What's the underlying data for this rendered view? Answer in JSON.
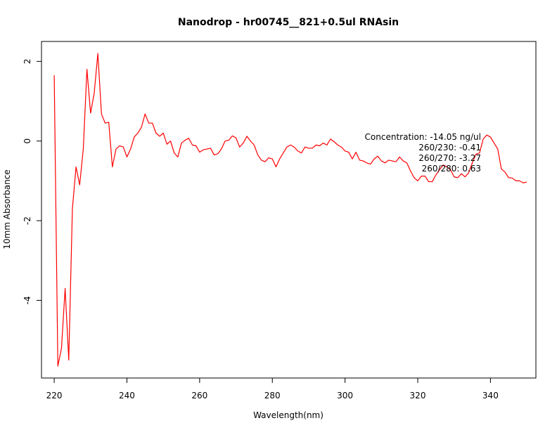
{
  "chart_data": {
    "type": "line",
    "title": "Nanodrop - hr00745__821+0.5ul RNAsin",
    "xlabel": "Wavelength(nm)",
    "ylabel": "10mm Absorbance",
    "xlim": [
      216.5,
      352.5
    ],
    "ylim": [
      -5.95,
      2.5
    ],
    "xticks": [
      220,
      240,
      260,
      280,
      300,
      320,
      340
    ],
    "yticks": [
      2,
      0,
      -2,
      -4
    ],
    "x_tick_labels": [
      "220",
      "240",
      "260",
      "280",
      "300",
      "320",
      "340"
    ],
    "y_tick_labels": [
      "2",
      "0",
      "-2",
      "-4"
    ],
    "grid": false,
    "line_color": "#ff0000",
    "series": [
      {
        "x": [
          220,
          221,
          222,
          223,
          224,
          225,
          226,
          227,
          228,
          229,
          230,
          231,
          232,
          233,
          234,
          235,
          236,
          237,
          238,
          239,
          240,
          241,
          242,
          243,
          244,
          245,
          246,
          247,
          248,
          249,
          250,
          251,
          252,
          253,
          254,
          255,
          256,
          257,
          258,
          259,
          260,
          261,
          262,
          263,
          264,
          265,
          266,
          267,
          268,
          269,
          270,
          271,
          272,
          273,
          274,
          275,
          276,
          277,
          278,
          279,
          280,
          281,
          282,
          283,
          284,
          285,
          286,
          287,
          288,
          289,
          290,
          291,
          292,
          293,
          294,
          295,
          296,
          297,
          298,
          299,
          300,
          301,
          302,
          303,
          304,
          305,
          306,
          307,
          308,
          309,
          310,
          311,
          312,
          313,
          314,
          315,
          316,
          317,
          318,
          319,
          320,
          321,
          322,
          323,
          324,
          325,
          326,
          327,
          328,
          329,
          330,
          331,
          332,
          333,
          334,
          335,
          336,
          337,
          338,
          339,
          340,
          341,
          342,
          343,
          344,
          345,
          346,
          347,
          348,
          349,
          350
        ],
        "values": [
          1.65,
          -5.65,
          -5.2,
          -3.7,
          -5.5,
          -1.7,
          -0.65,
          -1.1,
          -0.2,
          1.8,
          0.7,
          1.2,
          2.2,
          0.68,
          0.45,
          0.47,
          -0.65,
          -0.2,
          -0.12,
          -0.15,
          -0.4,
          -0.2,
          0.1,
          0.2,
          0.35,
          0.68,
          0.45,
          0.45,
          0.2,
          0.12,
          0.2,
          -0.08,
          0.0,
          -0.3,
          -0.4,
          -0.05,
          0.02,
          0.07,
          -0.1,
          -0.12,
          -0.28,
          -0.22,
          -0.2,
          -0.18,
          -0.35,
          -0.32,
          -0.2,
          0.0,
          0.02,
          0.13,
          0.08,
          -0.15,
          -0.05,
          0.12,
          0.0,
          -0.1,
          -0.35,
          -0.48,
          -0.52,
          -0.42,
          -0.45,
          -0.65,
          -0.45,
          -0.3,
          -0.15,
          -0.1,
          -0.15,
          -0.25,
          -0.3,
          -0.15,
          -0.18,
          -0.18,
          -0.1,
          -0.12,
          -0.05,
          -0.1,
          0.05,
          -0.02,
          -0.1,
          -0.15,
          -0.25,
          -0.28,
          -0.45,
          -0.28,
          -0.48,
          -0.5,
          -0.55,
          -0.58,
          -0.45,
          -0.38,
          -0.5,
          -0.55,
          -0.48,
          -0.5,
          -0.52,
          -0.4,
          -0.5,
          -0.55,
          -0.75,
          -0.92,
          -1.0,
          -0.88,
          -0.88,
          -1.02,
          -1.02,
          -0.85,
          -0.72,
          -0.6,
          -0.65,
          -0.72,
          -0.9,
          -0.92,
          -0.82,
          -0.9,
          -0.8,
          -0.55,
          -0.33,
          -0.3,
          0.05,
          0.15,
          0.1,
          -0.05,
          -0.2,
          -0.7,
          -0.78,
          -0.92,
          -0.93,
          -1.0,
          -1.0,
          -1.05,
          -1.03
        ]
      }
    ],
    "annotations": [
      "Concentration: -14.05 ng/ul",
      "260/230: -0.41",
      "260/270: -3.27",
      "260/280: 0.63"
    ]
  }
}
